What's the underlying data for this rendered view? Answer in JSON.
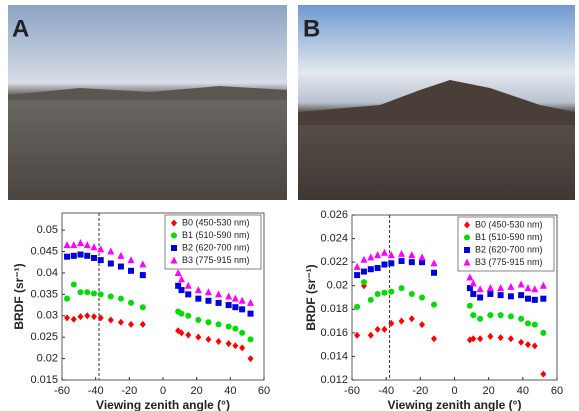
{
  "chart_data": [
    {
      "type": "scatter",
      "panel_label": "A",
      "xlabel": "Viewing zenith angle (°)",
      "ylabel": "BRDF (sr⁻¹)",
      "x": [
        -57,
        -53,
        -49,
        -45,
        -41,
        -37,
        -31,
        -25,
        -19,
        -12,
        9,
        11,
        15,
        21,
        27,
        33,
        39,
        43,
        47,
        52
      ],
      "xlim": [
        -60,
        60
      ],
      "xticks": [
        -60,
        -40,
        -20,
        0,
        20,
        40,
        60
      ],
      "ylim": [
        0.015,
        0.054
      ],
      "yticks": [
        0.015,
        0.02,
        0.025,
        0.03,
        0.035,
        0.04,
        0.045,
        0.05
      ],
      "reference_line_x": -38,
      "legend": "upper right",
      "series": [
        {
          "name": "B0 (450-530 nm)",
          "color": "#ff0000",
          "marker": "diamond",
          "values": [
            0.0295,
            0.0292,
            0.0298,
            0.03,
            0.0298,
            0.0295,
            0.029,
            0.0285,
            0.028,
            0.028,
            0.0265,
            0.026,
            0.0255,
            0.025,
            0.0245,
            0.024,
            0.0235,
            0.023,
            0.0225,
            0.02
          ]
        },
        {
          "name": "B1 (510-590 nm)",
          "color": "#00dd00",
          "marker": "circle",
          "values": [
            0.034,
            0.0373,
            0.0355,
            0.0355,
            0.0352,
            0.035,
            0.0345,
            0.034,
            0.033,
            0.032,
            0.031,
            0.0305,
            0.03,
            0.029,
            0.0285,
            0.028,
            0.0275,
            0.027,
            0.026,
            0.0245
          ]
        },
        {
          "name": "B2 (620-700 nm)",
          "color": "#0000dd",
          "marker": "square",
          "values": [
            0.0438,
            0.044,
            0.0443,
            0.044,
            0.0435,
            0.043,
            0.0422,
            0.0415,
            0.0405,
            0.0395,
            0.037,
            0.036,
            0.035,
            0.034,
            0.0335,
            0.033,
            0.0325,
            0.032,
            0.0315,
            0.0305
          ]
        },
        {
          "name": "B3 (775-915 nm)",
          "color": "#ff00ff",
          "marker": "triangle",
          "values": [
            0.0465,
            0.0465,
            0.047,
            0.0465,
            0.046,
            0.0455,
            0.045,
            0.044,
            0.043,
            0.042,
            0.04,
            0.0385,
            0.037,
            0.036,
            0.0355,
            0.035,
            0.0345,
            0.034,
            0.0335,
            0.033
          ]
        }
      ]
    },
    {
      "type": "scatter",
      "panel_label": "B",
      "xlabel": "Viewing zenith angle (°)",
      "ylabel": "BRDF (sr⁻¹)",
      "x": [
        -57,
        -53,
        -49,
        -45,
        -41,
        -37,
        -31,
        -25,
        -19,
        -12,
        9,
        11,
        15,
        21,
        27,
        33,
        39,
        43,
        47,
        52
      ],
      "xlim": [
        -60,
        60
      ],
      "xticks": [
        -60,
        -40,
        -20,
        0,
        20,
        40,
        60
      ],
      "ylim": [
        0.012,
        0.026
      ],
      "yticks": [
        0.012,
        0.014,
        0.016,
        0.018,
        0.02,
        0.022,
        0.024,
        0.026
      ],
      "reference_line_x": -38,
      "legend": "upper right",
      "series": [
        {
          "name": "B0 (450-530 nm)",
          "color": "#ff0000",
          "marker": "diamond",
          "values": [
            0.0158,
            0.02,
            0.0158,
            0.0163,
            0.0163,
            0.0168,
            0.017,
            0.0172,
            0.0167,
            0.0155,
            0.0154,
            0.0155,
            0.0155,
            0.0157,
            0.0156,
            0.0155,
            0.0152,
            0.015,
            0.0149,
            0.0125
          ]
        },
        {
          "name": "B1 (510-590 nm)",
          "color": "#00dd00",
          "marker": "circle",
          "values": [
            0.0182,
            0.0203,
            0.0188,
            0.0193,
            0.0194,
            0.0195,
            0.0198,
            0.0193,
            0.019,
            0.0184,
            0.0183,
            0.0175,
            0.0172,
            0.0175,
            0.0175,
            0.0174,
            0.0172,
            0.0168,
            0.0167,
            0.016
          ]
        },
        {
          "name": "B2 (620-700 nm)",
          "color": "#0000dd",
          "marker": "square",
          "values": [
            0.0209,
            0.0212,
            0.0214,
            0.0215,
            0.0218,
            0.0219,
            0.0221,
            0.022,
            0.022,
            0.0211,
            0.0198,
            0.0193,
            0.019,
            0.0193,
            0.0192,
            0.0191,
            0.0192,
            0.0189,
            0.0188,
            0.0189
          ]
        },
        {
          "name": "B3 (775-915 nm)",
          "color": "#ff00ff",
          "marker": "triangle",
          "values": [
            0.0216,
            0.0222,
            0.0224,
            0.0226,
            0.0228,
            0.0226,
            0.0227,
            0.0226,
            0.0224,
            0.0219,
            0.0207,
            0.0202,
            0.0197,
            0.0198,
            0.0198,
            0.0199,
            0.0201,
            0.0198,
            0.0197,
            0.02
          ]
        }
      ]
    }
  ]
}
